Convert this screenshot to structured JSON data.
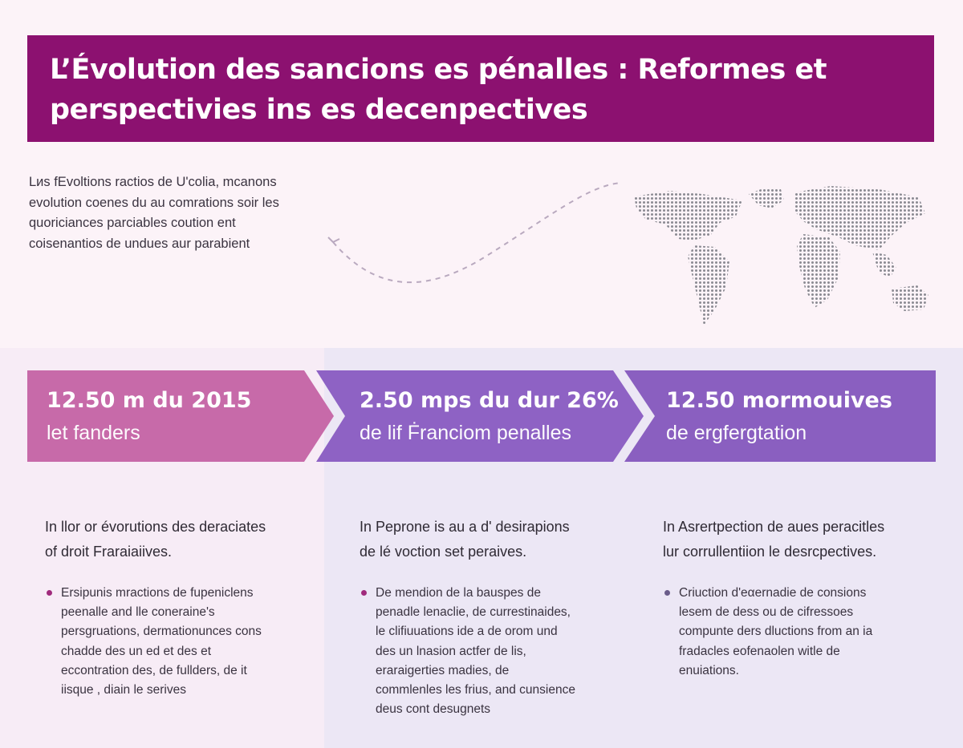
{
  "title": {
    "line1": "L’Évolution des sancions es pénalles : Reformes et",
    "line2": "perspectivies ins es decenpectives"
  },
  "intro": {
    "lines": [
      "Lиs fEvoltions ractios de U'colia, mcanons",
      "evolution coenes du au comrations soir les",
      "quoriciances parciables coution ent",
      "coisenantios de undues aur parabient"
    ]
  },
  "stats": [
    {
      "value": "12.50 m du 2015",
      "label": "let fanders",
      "color": "#c76aa9"
    },
    {
      "value": "2.50 mps du dur 26%",
      "label": "de lif Ḟranciom penalles",
      "color": "#8e62c4"
    },
    {
      "value": "12.50 mormouives",
      "label": "de ergfergtation",
      "color": "#8a5fc0"
    }
  ],
  "columns": [
    {
      "heading": [
        "In llor or évorutions des deraciates",
        "of droit Fraraiaiives."
      ],
      "bullet": [
        "Ersipunis mractions de fupeniclens",
        "peenalle and lle coneraine's",
        "persgruations, dermationunces cons",
        "chadde des un ed et des et",
        "eccontration des, de fullders, de it",
        "iisque , diain le serives"
      ]
    },
    {
      "heading": [
        "In Peprone is au a d' desirapions",
        "de lé voction set peraives."
      ],
      "bullet": [
        "De mendion de la bauspes de",
        "penadle lenaclie, de currestinaides,",
        "le clifiuuations ide a de orom und",
        "des un lnasion actfer de lis,",
        "eraraigerties madies, de",
        "commlenles les frius, and cunsience",
        "deus cont desugnets"
      ]
    },
    {
      "heading": [
        "In Asrertpection de aues peracitles",
        "lur corrullentiion le desrcpectives."
      ],
      "bullet": [
        "Criuction d'eαernadie de consions",
        "lesem de dess ou de cifressoes",
        "compunte ders dluctions from an ia",
        "fradacles eofenaolen witle de",
        "enuiations."
      ]
    }
  ]
}
